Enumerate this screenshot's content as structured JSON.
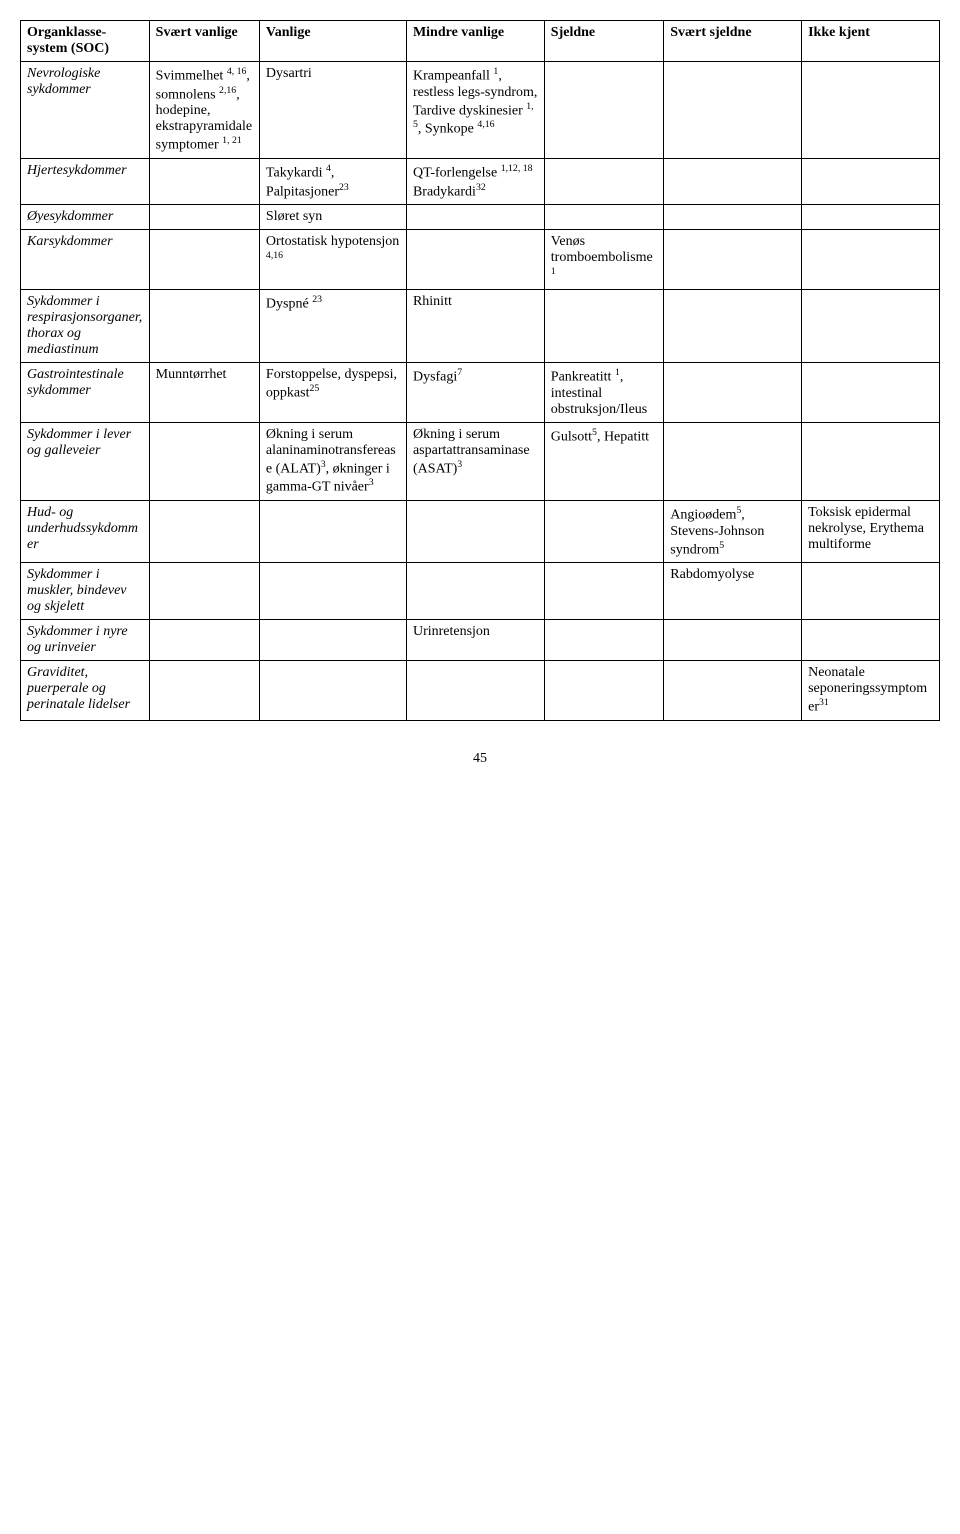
{
  "columns": [
    {
      "label": "Organklasse-system (SOC)",
      "width": "14%"
    },
    {
      "label": "Svært vanlige",
      "width": "12%"
    },
    {
      "label": "Vanlige",
      "width": "16%"
    },
    {
      "label": "Mindre vanlige",
      "width": "15%"
    },
    {
      "label": "Sjeldne",
      "width": "13%"
    },
    {
      "label": "Svært sjeldne",
      "width": "15%"
    },
    {
      "label": "Ikke kjent",
      "width": "15%"
    }
  ],
  "rows": [
    {
      "soc": {
        "text": "Nevrologiske sykdommer",
        "italic": true
      },
      "c1": "Svimmelhet <sup>4, 16</sup>, somnolens <sup>2,16</sup>, hodepine, ekstrapyramidale symptomer <sup>1, 21</sup>",
      "c2": "Dysartri",
      "c3": "Krampeanfall <sup>1</sup>, restless legs-syndrom, Tardive dyskinesier <sup>1, 5</sup>, Synkope <sup>4,16</sup>",
      "c4": "",
      "c5": "",
      "c6": ""
    },
    {
      "soc": {
        "text": "Hjertesykdommer",
        "italic": true
      },
      "c1": "",
      "c2": "Takykardi <sup>4</sup>, Palpitasjoner<sup>23</sup>",
      "c3": "QT-forlengelse <sup>1,12, 18</sup><br>Bradykardi<sup>32</sup>",
      "c4": "",
      "c5": "",
      "c6": ""
    },
    {
      "soc": {
        "text": "Øyesykdommer",
        "italic": true
      },
      "c1": "",
      "c2": "Sløret syn",
      "c3": "",
      "c4": "",
      "c5": "",
      "c6": ""
    },
    {
      "soc": {
        "text": "Karsykdommer",
        "italic": true
      },
      "c1": "",
      "c2": "Ortostatisk hypotensjon <sup>4,16</sup>",
      "c3": "",
      "c4": "Venøs tromboembolisme<sup>1</sup>",
      "c5": "",
      "c6": ""
    },
    {
      "soc": {
        "text": "Sykdommer i respirasjonsorganer, thorax og mediastinum",
        "italic": true
      },
      "c1": "",
      "c2": "Dyspné <sup>23</sup>",
      "c3": "Rhinitt",
      "c4": "",
      "c5": "",
      "c6": ""
    },
    {
      "soc": {
        "text": "Gastrointestinale sykdommer",
        "italic": true
      },
      "c1": "Munntørrhet",
      "c2": "Forstoppelse, dyspepsi, oppkast<sup>25</sup>",
      "c3": "Dysfagi<sup>7</sup>",
      "c4": "Pankreatitt <sup>1</sup>, intestinal obstruksjon/Ileus",
      "c5": "",
      "c6": ""
    },
    {
      "soc": {
        "text": "Sykdommer i lever og galleveier",
        "italic": true
      },
      "c1": "",
      "c2": "Økning i serum alaninaminotransferease (ALAT)<sup>3</sup>, økninger i gamma-GT nivåer<sup>3</sup>",
      "c3": "Økning i serum aspartattransaminase (ASAT)<sup>3</sup>",
      "c4": "Gulsott<sup>5</sup>, Hepatitt",
      "c5": "",
      "c6": ""
    },
    {
      "soc": {
        "text": "Hud- og underhudssykdommer",
        "italic": true
      },
      "c1": "",
      "c2": "",
      "c3": "",
      "c4": "",
      "c5": "Angioødem<sup>5</sup>, Stevens-Johnson syndrom<sup>5</sup>",
      "c6": "Toksisk epidermal nekrolyse, Erythema multiforme"
    },
    {
      "soc": {
        "text": "Sykdommer i muskler, bindevev og skjelett",
        "italic": true
      },
      "c1": "",
      "c2": "",
      "c3": "",
      "c4": "",
      "c5": "Rabdomyolyse",
      "c6": ""
    },
    {
      "soc": {
        "text": "Sykdommer i nyre og urinveier",
        "italic": true
      },
      "c1": "",
      "c2": "",
      "c3": "Urinretensjon",
      "c4": "",
      "c5": "",
      "c6": ""
    },
    {
      "soc": {
        "text": "Graviditet, puerperale og perinatale lidelser",
        "italic": true
      },
      "c1": "",
      "c2": "",
      "c3": "",
      "c4": "",
      "c5": "",
      "c6": "Neonatale seponeringssymptomer<sup>31</sup>"
    }
  ],
  "page_number": "45"
}
